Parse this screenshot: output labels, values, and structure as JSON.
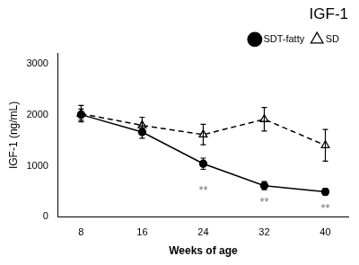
{
  "chart_data": {
    "type": "line",
    "title": "IGF-1",
    "x_label": "Weeks of age",
    "y_label": "IGF-1 (ng/mL)",
    "x": [
      8,
      16,
      24,
      32,
      40
    ],
    "series": [
      {
        "name": "SDT-fatty",
        "color": "#000000",
        "marker": "circle",
        "line_style": "solid",
        "values": [
          2000,
          1660,
          1040,
          610,
          490
        ],
        "errors": [
          110,
          120,
          110,
          80,
          65
        ]
      },
      {
        "name": "SD",
        "color": "#000000",
        "marker": "triangle-open",
        "line_style": "dashed",
        "values": [
          2020,
          1790,
          1610,
          1910,
          1400
        ],
        "errors": [
          160,
          160,
          200,
          230,
          310
        ]
      }
    ],
    "annotations": [
      {
        "x": 24,
        "y": 620,
        "text": "**"
      },
      {
        "x": 32,
        "y": 390,
        "text": "**"
      },
      {
        "x": 40,
        "y": 280,
        "text": "**"
      }
    ],
    "xlim": [
      5,
      43
    ],
    "xticks": [
      8,
      16,
      24,
      32,
      40
    ],
    "ylim": [
      0,
      3200
    ],
    "yticks": [
      0,
      1000,
      2000,
      3000
    ],
    "grid": false,
    "legend": "upper right"
  }
}
